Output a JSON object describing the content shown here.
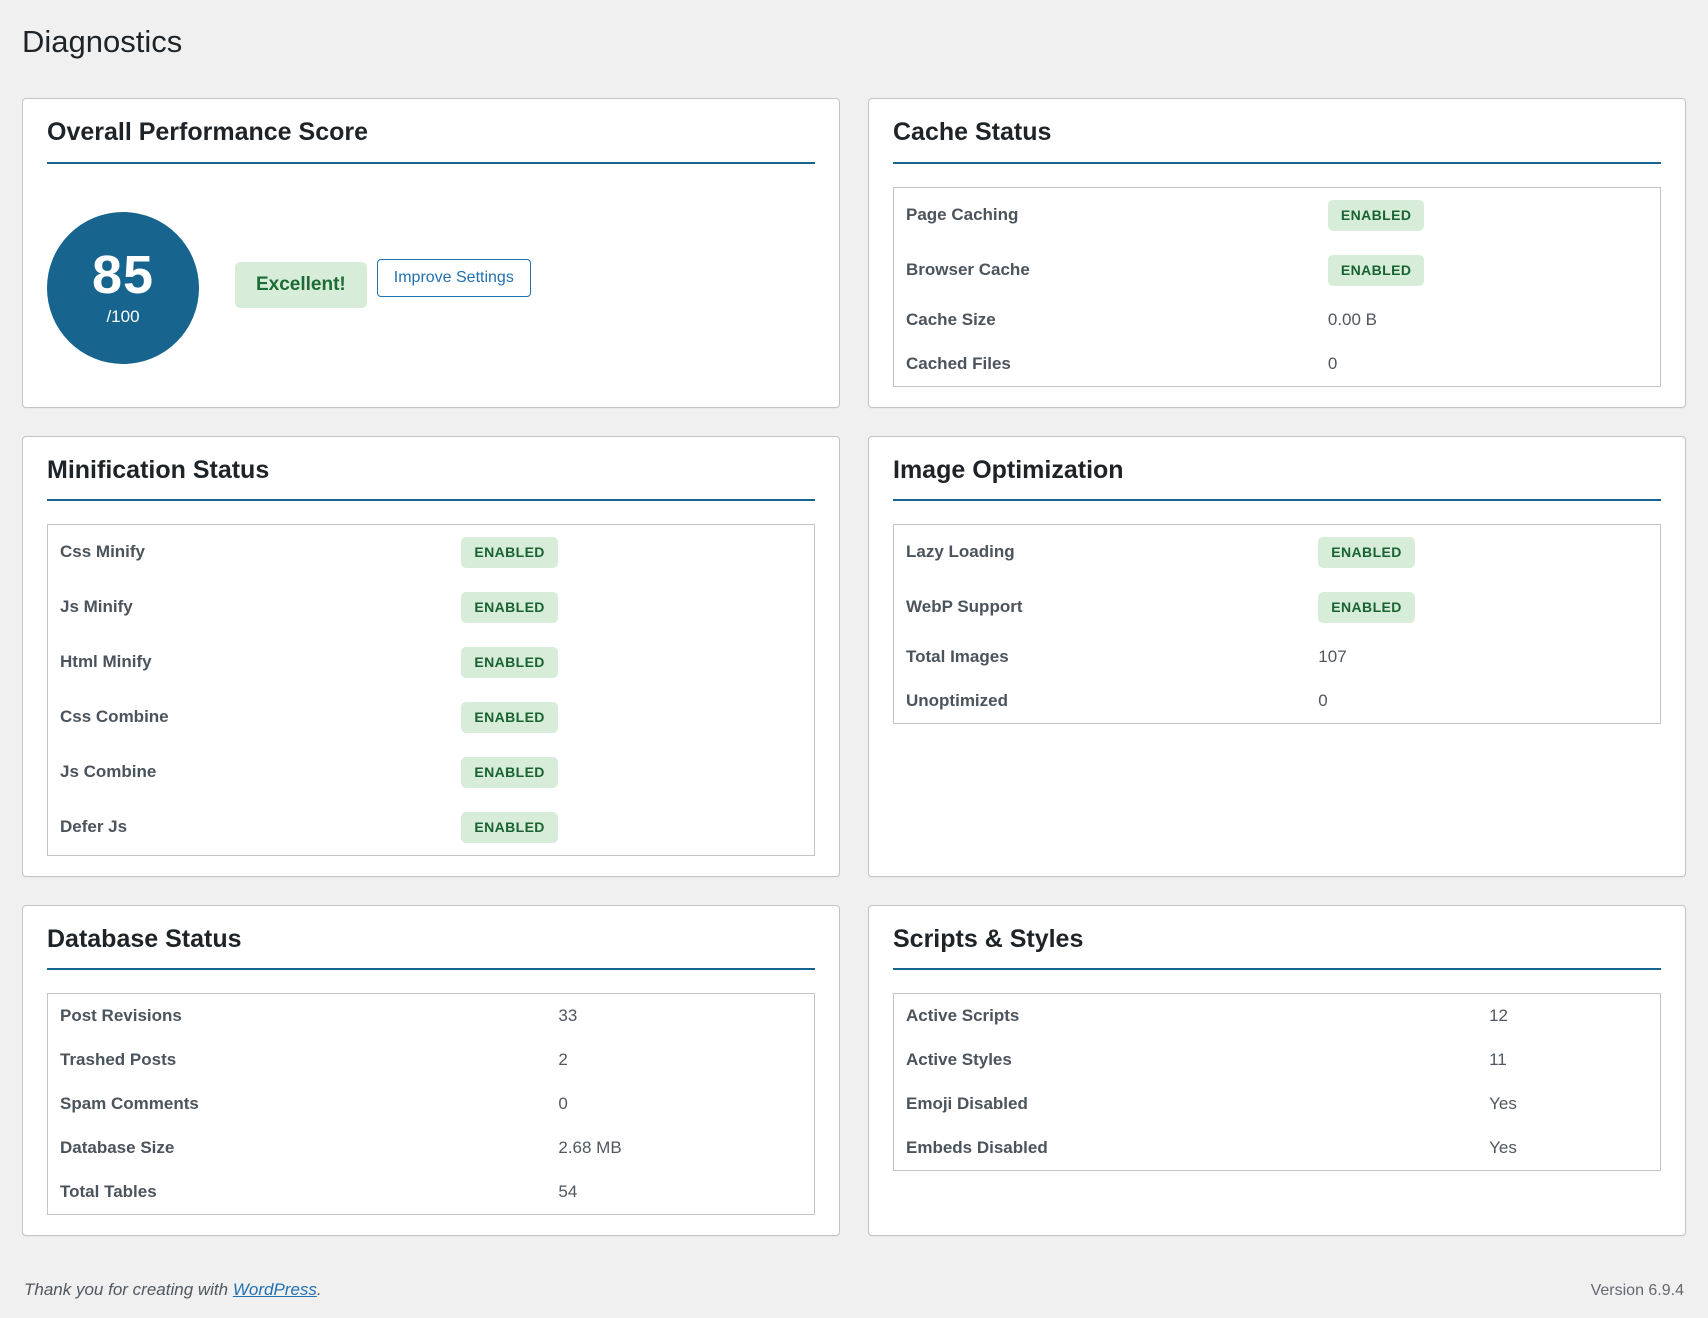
{
  "page": {
    "title": "Diagnostics"
  },
  "colors": {
    "accent_blue": "#17648f",
    "link_blue": "#2271b1",
    "badge_background": "#d7ecd9",
    "badge_text": "#186331",
    "score_circle": "#17648f",
    "page_background": "#f0f0f1",
    "card_border": "#c3c4c7"
  },
  "cards": {
    "performance": {
      "title": "Overall Performance Score",
      "score": "85",
      "score_max": "/100",
      "rating": "Excellent!",
      "button_label": "Improve Settings"
    },
    "cache": {
      "title": "Cache Status",
      "rows": [
        {
          "label": "Page Caching",
          "badge": "ENABLED"
        },
        {
          "label": "Browser Cache",
          "badge": "ENABLED"
        },
        {
          "label": "Cache Size",
          "value": "0.00 B"
        },
        {
          "label": "Cached Files",
          "value": "0"
        }
      ]
    },
    "minification": {
      "title": "Minification Status",
      "rows": [
        {
          "label": "Css Minify",
          "badge": "ENABLED"
        },
        {
          "label": "Js Minify",
          "badge": "ENABLED"
        },
        {
          "label": "Html Minify",
          "badge": "ENABLED"
        },
        {
          "label": "Css Combine",
          "badge": "ENABLED"
        },
        {
          "label": "Js Combine",
          "badge": "ENABLED"
        },
        {
          "label": "Defer Js",
          "badge": "ENABLED"
        }
      ]
    },
    "image_optimization": {
      "title": "Image Optimization",
      "rows": [
        {
          "label": "Lazy Loading",
          "badge": "ENABLED"
        },
        {
          "label": "WebP Support",
          "badge": "ENABLED"
        },
        {
          "label": "Total Images",
          "value": "107"
        },
        {
          "label": "Unoptimized",
          "value": "0"
        }
      ]
    },
    "database": {
      "title": "Database Status",
      "rows": [
        {
          "label": "Post Revisions",
          "value": "33"
        },
        {
          "label": "Trashed Posts",
          "value": "2"
        },
        {
          "label": "Spam Comments",
          "value": "0"
        },
        {
          "label": "Database Size",
          "value": "2.68 MB"
        },
        {
          "label": "Total Tables",
          "value": "54"
        }
      ]
    },
    "scripts": {
      "title": "Scripts & Styles",
      "rows": [
        {
          "label": "Active Scripts",
          "value": "12"
        },
        {
          "label": "Active Styles",
          "value": "11"
        },
        {
          "label": "Emoji Disabled",
          "value": "Yes"
        },
        {
          "label": "Embeds Disabled",
          "value": "Yes"
        }
      ]
    }
  },
  "footer": {
    "thanks_prefix": "Thank you for creating with ",
    "link_label": "WordPress",
    "thanks_suffix": ".",
    "version": "Version 6.9.4"
  }
}
